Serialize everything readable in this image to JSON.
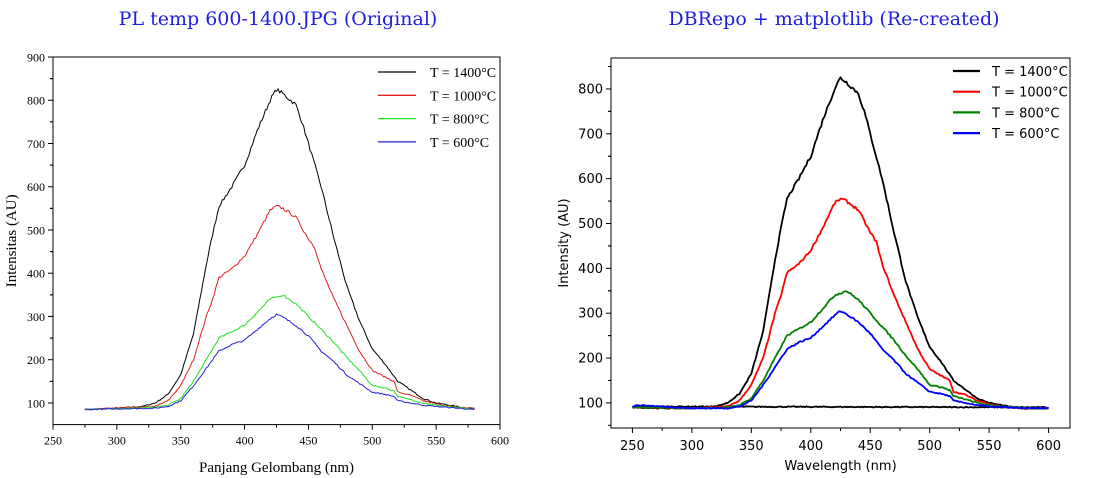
{
  "titles": {
    "left": "PL temp 600-1400.JPG (Original)",
    "right": "DBRepo + matplotlib (Re-created)"
  },
  "chart_data": [
    {
      "type": "line",
      "title": "PL temp 600-1400.JPG (Original)",
      "xlabel": "Panjang Gelombang (nm)",
      "ylabel": "Intensitas (AU)",
      "xlim": [
        250,
        600
      ],
      "ylim": [
        50,
        900
      ],
      "xticks": [
        250,
        300,
        350,
        400,
        450,
        500,
        550,
        600
      ],
      "yticks": [
        100,
        200,
        300,
        400,
        500,
        600,
        700,
        800,
        900
      ],
      "legend": "top-right",
      "grid": false,
      "series": [
        {
          "name": "T = 1400°C",
          "color": "#000000",
          "x": [
            275,
            300,
            320,
            330,
            340,
            350,
            360,
            370,
            375,
            380,
            390,
            400,
            410,
            420,
            425,
            430,
            440,
            445,
            450,
            460,
            470,
            480,
            490,
            500,
            510,
            520,
            530,
            540,
            550,
            560,
            570,
            580
          ],
          "y": [
            85,
            88,
            92,
            100,
            120,
            165,
            260,
            420,
            490,
            555,
            600,
            650,
            730,
            800,
            825,
            815,
            790,
            750,
            700,
            600,
            480,
            370,
            290,
            225,
            190,
            150,
            130,
            110,
            100,
            95,
            90,
            88
          ]
        },
        {
          "name": "T = 1000°C",
          "color": "#e02020",
          "x": [
            275,
            330,
            340,
            350,
            360,
            370,
            375,
            380,
            390,
            400,
            410,
            420,
            425,
            430,
            440,
            450,
            455,
            460,
            470,
            480,
            490,
            500,
            510,
            517,
            520,
            530,
            540,
            550,
            560,
            580
          ],
          "y": [
            85,
            92,
            105,
            140,
            200,
            300,
            340,
            390,
            410,
            440,
            490,
            545,
            555,
            550,
            530,
            480,
            460,
            410,
            340,
            280,
            220,
            175,
            160,
            150,
            125,
            118,
            105,
            98,
            92,
            87
          ]
        },
        {
          "name": "T = 800°C",
          "color": "#20e020",
          "x": [
            275,
            330,
            340,
            350,
            360,
            370,
            380,
            390,
            400,
            410,
            420,
            430,
            440,
            450,
            460,
            470,
            480,
            490,
            500,
            510,
            517,
            520,
            530,
            540,
            550,
            580
          ],
          "y": [
            85,
            90,
            95,
            110,
            150,
            200,
            250,
            265,
            280,
            310,
            340,
            350,
            330,
            300,
            270,
            240,
            205,
            175,
            140,
            135,
            128,
            115,
            108,
            100,
            95,
            85
          ]
        },
        {
          "name": "T = 600°C",
          "color": "#2020e0",
          "x": [
            275,
            330,
            340,
            350,
            360,
            370,
            380,
            390,
            400,
            410,
            420,
            425,
            430,
            440,
            450,
            460,
            470,
            480,
            490,
            500,
            510,
            517,
            520,
            530,
            540,
            550,
            580
          ],
          "y": [
            85,
            88,
            92,
            105,
            140,
            180,
            220,
            235,
            245,
            270,
            295,
            305,
            298,
            280,
            255,
            220,
            195,
            165,
            145,
            125,
            120,
            115,
            105,
            100,
            95,
            92,
            85
          ]
        }
      ]
    },
    {
      "type": "line",
      "title": "DBRepo + matplotlib (Re-created)",
      "xlabel": "Wavelength (nm)",
      "ylabel": "Intensity (AU)",
      "xlim": [
        232,
        618
      ],
      "ylim": [
        44,
        869
      ],
      "xticks": [
        250,
        300,
        350,
        400,
        450,
        500,
        550,
        600
      ],
      "yticks": [
        100,
        200,
        300,
        400,
        500,
        600,
        700,
        800
      ],
      "legend": "top-right",
      "grid": false,
      "series": [
        {
          "name": "T = 1400°C",
          "color": "#000000",
          "x": [
            250,
            255,
            600,
            250,
            275,
            300,
            320,
            330,
            340,
            350,
            360,
            370,
            375,
            380,
            390,
            400,
            410,
            420,
            425,
            430,
            440,
            445,
            450,
            460,
            470,
            480,
            490,
            500,
            510,
            520,
            530,
            540,
            550,
            560,
            570,
            580,
            600
          ],
          "y": [
            90,
            92,
            90,
            90,
            88,
            88,
            92,
            100,
            120,
            165,
            260,
            420,
            490,
            555,
            600,
            650,
            730,
            800,
            825,
            815,
            790,
            750,
            700,
            600,
            480,
            370,
            290,
            225,
            190,
            150,
            130,
            110,
            100,
            95,
            90,
            88,
            88
          ]
        },
        {
          "name": "T = 1000°C",
          "color": "#ff0000",
          "x": [
            250,
            300,
            330,
            340,
            350,
            360,
            370,
            375,
            380,
            390,
            400,
            410,
            420,
            425,
            430,
            440,
            450,
            455,
            460,
            470,
            480,
            490,
            500,
            510,
            517,
            520,
            530,
            540,
            550,
            560,
            580,
            600
          ],
          "y": [
            90,
            88,
            92,
            105,
            140,
            200,
            300,
            340,
            390,
            410,
            440,
            490,
            545,
            555,
            550,
            530,
            480,
            460,
            410,
            340,
            280,
            220,
            175,
            160,
            150,
            125,
            118,
            105,
            98,
            92,
            87,
            88
          ]
        },
        {
          "name": "T = 800°C",
          "color": "#008000",
          "x": [
            250,
            300,
            330,
            340,
            350,
            360,
            370,
            380,
            390,
            400,
            410,
            420,
            430,
            440,
            450,
            460,
            470,
            480,
            490,
            500,
            510,
            517,
            520,
            530,
            540,
            550,
            580,
            600
          ],
          "y": [
            90,
            88,
            90,
            95,
            110,
            150,
            200,
            250,
            265,
            280,
            310,
            340,
            350,
            330,
            300,
            270,
            240,
            205,
            175,
            140,
            135,
            128,
            115,
            108,
            100,
            95,
            88,
            88
          ]
        },
        {
          "name": "T = 600°C",
          "color": "#0000ff",
          "x": [
            250,
            255,
            300,
            330,
            340,
            350,
            360,
            370,
            380,
            390,
            400,
            410,
            420,
            425,
            430,
            440,
            450,
            460,
            470,
            480,
            490,
            500,
            510,
            517,
            520,
            530,
            540,
            550,
            580,
            600
          ],
          "y": [
            92,
            95,
            88,
            88,
            92,
            105,
            140,
            180,
            220,
            235,
            245,
            270,
            295,
            305,
            298,
            280,
            255,
            220,
            195,
            165,
            145,
            125,
            120,
            115,
            105,
            100,
            95,
            92,
            88,
            88
          ]
        }
      ]
    }
  ]
}
